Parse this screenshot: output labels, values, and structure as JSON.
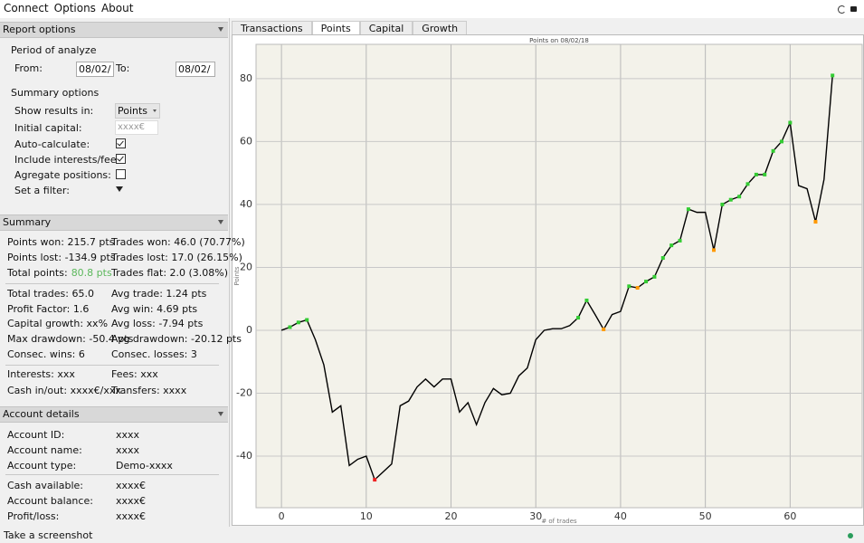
{
  "menu": [
    "Connect",
    "Options",
    "About"
  ],
  "report_options": {
    "title": "Report options",
    "period_title": "Period of analyze",
    "from_label": "From:",
    "from_value": "08/02/",
    "to_label": "To:",
    "to_value": "08/02/",
    "summary_title": "Summary options",
    "rows": [
      {
        "label": "Show results in:",
        "control": "dropdown",
        "value": "Points"
      },
      {
        "label": "Initial capital:",
        "control": "input",
        "value": "xxxx€"
      },
      {
        "label": "Auto-calculate:",
        "control": "checkbox",
        "checked": true
      },
      {
        "label": "Include interests/fees:",
        "control": "checkbox",
        "checked": true
      },
      {
        "label": "Agregate positions:",
        "control": "checkbox",
        "checked": false
      },
      {
        "label": "Set a filter:",
        "control": "filter"
      }
    ]
  },
  "summary": {
    "title": "Summary",
    "groups": [
      [
        [
          "Points won: 215.7 pts",
          "Trades won: 46.0 (70.77%)"
        ],
        [
          "Points lost: -134.9 pts",
          "Trades lost: 17.0 (26.15%)"
        ],
        [
          {
            "label": "Total points:",
            "value": "80.8 pts",
            "color": "#5cb85c"
          },
          "Trades flat: 2.0 (3.08%)"
        ]
      ],
      [
        [
          "Total trades: 65.0",
          "Avg trade: 1.24 pts"
        ],
        [
          "Profit Factor: 1.6",
          "Avg win: 4.69 pts"
        ],
        [
          "Capital growth: xx%",
          "Avg loss: -7.94 pts"
        ],
        [
          "Max drawdown: -50.4 pts",
          "Avg drawdown: -20.12 pts"
        ],
        [
          "Consec. wins: 6",
          "Consec. losses: 3"
        ]
      ],
      [
        [
          "Interests: xxx",
          "Fees: xxx"
        ],
        [
          "Cash in/out: xxxx€/xxx",
          "Transfers: xxxx"
        ]
      ]
    ]
  },
  "account": {
    "title": "Account details",
    "groups": [
      [
        [
          "Account ID:",
          "xxxx"
        ],
        [
          "Account name:",
          "xxxx"
        ],
        [
          "Account type:",
          "Demo-xxxx"
        ]
      ],
      [
        [
          "Cash available:",
          "xxxx€"
        ],
        [
          "Account balance:",
          "xxxx€"
        ],
        [
          "Profit/loss:",
          "xxxx€"
        ]
      ]
    ]
  },
  "tabs": {
    "items": [
      "Transactions",
      "Points",
      "Capital",
      "Growth"
    ],
    "active": 1
  },
  "status": "Take a screenshot",
  "chart_data": {
    "type": "line",
    "title": "Points on 08/02/18",
    "x_label": "# of trades",
    "y_label": "Points",
    "x": [
      0,
      1,
      2,
      3,
      4,
      5,
      6,
      7,
      8,
      9,
      10,
      11,
      12,
      13,
      14,
      15,
      16,
      17,
      18,
      19,
      20,
      21,
      22,
      23,
      24,
      25,
      26,
      27,
      28,
      29,
      30,
      31,
      32,
      33,
      34,
      35,
      36,
      37,
      38,
      39,
      40,
      41,
      42,
      43,
      44,
      45,
      46,
      47,
      48,
      49,
      50,
      51,
      52,
      53,
      54,
      55,
      56,
      57,
      58,
      59,
      60,
      61,
      62,
      63,
      64,
      65
    ],
    "values": [
      0,
      1,
      2.5,
      3.3,
      -3,
      -11,
      -26,
      -24,
      -43,
      -41,
      -40,
      -47.5,
      -45,
      -42.5,
      -24,
      -22.5,
      -18,
      -15.5,
      -18,
      -15.5,
      -15.5,
      -26,
      -23,
      -30,
      -23,
      -18.5,
      -20.5,
      -20,
      -14.5,
      -12,
      -3,
      0,
      0.5,
      0.5,
      1.5,
      4,
      9.5,
      5,
      0.3,
      5,
      6,
      14,
      13.5,
      15.5,
      17,
      23,
      27,
      28.5,
      38.5,
      37.5,
      37.5,
      25.5,
      40,
      41.5,
      42.5,
      46.5,
      49.5,
      49.5,
      57,
      60,
      66,
      46,
      45,
      34.5,
      48,
      81
    ],
    "color": "#000000",
    "point_colors": [
      null,
      "#33cc33",
      "#33cc33",
      "#33cc33",
      null,
      null,
      null,
      null,
      null,
      null,
      null,
      "#ee2222",
      null,
      null,
      null,
      null,
      null,
      null,
      null,
      null,
      null,
      null,
      null,
      null,
      null,
      null,
      null,
      null,
      null,
      null,
      null,
      null,
      null,
      null,
      null,
      "#33cc33",
      "#33cc33",
      null,
      "#ff9900",
      null,
      null,
      "#33cc33",
      "#ff9900",
      "#33cc33",
      "#33cc33",
      "#33cc33",
      "#33cc33",
      "#33cc33",
      "#33cc33",
      null,
      null,
      "#ff9900",
      "#33cc33",
      "#33cc33",
      "#33cc33",
      "#33cc33",
      "#33cc33",
      "#33cc33",
      "#33cc33",
      "#33cc33",
      "#33cc33",
      null,
      null,
      "#ff9900",
      null,
      "#33cc33"
    ],
    "xlim": [
      -3,
      68.5
    ],
    "ylim": [
      -56.4,
      90.9
    ],
    "xticks": [
      0,
      10,
      20,
      30,
      40,
      50,
      60
    ],
    "yticks": [
      -40,
      -20,
      0,
      20,
      40,
      60,
      80
    ],
    "grid": true,
    "background": "#f3f2ea"
  }
}
